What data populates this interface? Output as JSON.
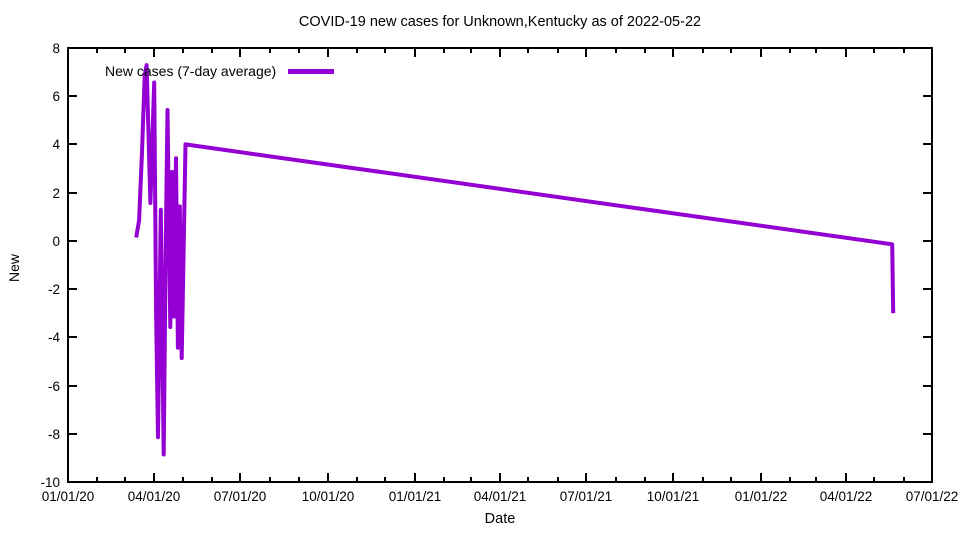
{
  "title": "COVID-19 new cases for Unknown,Kentucky as of 2022-05-22",
  "x_axis_label": "Date",
  "y_axis_label": "New",
  "legend": {
    "label": "New cases (7-day average)"
  },
  "colors": {
    "line": "#9400d3",
    "axis": "#000000",
    "background": "#ffffff",
    "text": "#000000"
  },
  "chart_data": {
    "type": "line",
    "title": "COVID-19 new cases for Unknown,Kentucky as of 2022-05-22",
    "xlabel": "Date",
    "ylabel": "New",
    "x_start": "2020-01-01",
    "x_end": "2022-07-01",
    "ylim": [
      -10,
      8
    ],
    "y_ticks": [
      -10,
      -8,
      -6,
      -4,
      -2,
      0,
      2,
      4,
      6,
      8
    ],
    "x_tick_labels": [
      "01/01/20",
      "04/01/20",
      "07/01/20",
      "10/01/20",
      "01/01/21",
      "04/01/21",
      "07/01/21",
      "10/01/21",
      "01/01/22",
      "04/01/22",
      "07/01/22"
    ],
    "minor_x_ticks": "monthly",
    "grid": false,
    "legend_position": "inside-top-left",
    "series": [
      {
        "name": "New cases (7-day average)",
        "color": "#9400d3",
        "points": [
          [
            "2020-03-13",
            0.14
          ],
          [
            "2020-03-16",
            0.86
          ],
          [
            "2020-03-19",
            3.57
          ],
          [
            "2020-03-22",
            6.86
          ],
          [
            "2020-03-24",
            7.29
          ],
          [
            "2020-03-28",
            1.57
          ],
          [
            "2020-04-01",
            6.57
          ],
          [
            "2020-04-03",
            -3.0
          ],
          [
            "2020-04-05",
            -8.14
          ],
          [
            "2020-04-08",
            1.29
          ],
          [
            "2020-04-11",
            -8.86
          ],
          [
            "2020-04-13",
            -0.71
          ],
          [
            "2020-04-15",
            5.43
          ],
          [
            "2020-04-18",
            -3.57
          ],
          [
            "2020-04-20",
            2.86
          ],
          [
            "2020-04-22",
            -3.14
          ],
          [
            "2020-04-24",
            3.43
          ],
          [
            "2020-04-26",
            -4.43
          ],
          [
            "2020-04-28",
            1.43
          ],
          [
            "2020-04-30",
            -4.86
          ],
          [
            "2020-05-04",
            4.0
          ],
          [
            "2022-05-20",
            -0.14
          ],
          [
            "2022-05-21",
            -3.0
          ]
        ]
      }
    ]
  }
}
